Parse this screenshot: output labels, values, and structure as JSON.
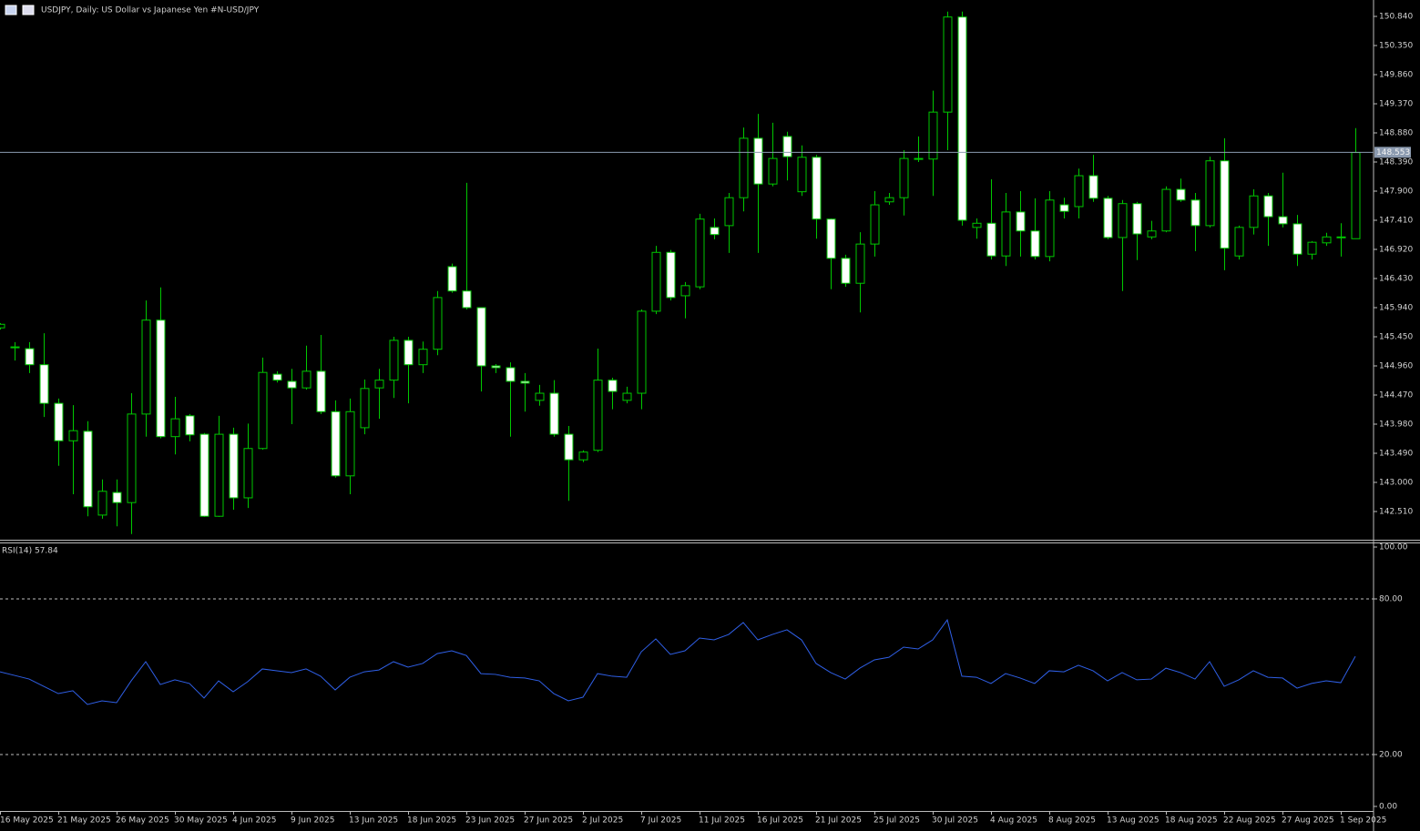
{
  "title": "USDJPY, Daily:  US Dollar vs  Japanese Yen #N-USD/JPY",
  "chart_data": [
    {
      "type": "candlestick",
      "color": "#00c800",
      "up_fill": "#000000",
      "down_fill": "#ffffff",
      "categories": [
        "16 May 2025",
        null,
        null,
        null,
        "21 May 2025",
        null,
        null,
        null,
        "26 May 2025",
        null,
        null,
        null,
        "30 May 2025",
        null,
        null,
        null,
        "4 Jun 2025",
        null,
        null,
        null,
        "9 Jun 2025",
        null,
        null,
        null,
        "13 Jun 2025",
        null,
        null,
        null,
        "18 Jun 2025",
        null,
        null,
        null,
        "23 Jun 2025",
        null,
        null,
        null,
        "27 Jun 2025",
        null,
        null,
        null,
        "2 Jul 2025",
        null,
        null,
        null,
        "7 Jul 2025",
        null,
        null,
        null,
        "11 Jul 2025",
        null,
        null,
        null,
        "16 Jul 2025",
        null,
        null,
        null,
        "21 Jul 2025",
        null,
        null,
        null,
        "25 Jul 2025",
        null,
        null,
        null,
        "30 Jul 2025",
        null,
        null,
        null,
        "4 Aug 2025",
        null,
        null,
        null,
        "8 Aug 2025",
        null,
        null,
        null,
        "13 Aug 2025",
        null,
        null,
        null,
        "18 Aug 2025",
        null,
        null,
        null,
        "22 Aug 2025",
        null,
        null,
        null,
        "27 Aug 2025",
        null,
        null,
        null,
        "1 Sep 2025",
        null
      ],
      "open": [
        145.6,
        145.28,
        145.25,
        144.98,
        144.33,
        143.7,
        143.86,
        142.45,
        142.83,
        142.66,
        144.15,
        145.73,
        143.77,
        144.12,
        143.81,
        142.43,
        143.81,
        142.74,
        143.57,
        144.82,
        144.7,
        144.59,
        144.87,
        144.19,
        143.11,
        143.92,
        144.59,
        144.72,
        145.39,
        144.98,
        145.24,
        146.63,
        146.22,
        145.94,
        144.96,
        144.93,
        144.7,
        144.38,
        144.5,
        143.81,
        143.38,
        143.54,
        144.72,
        144.38,
        144.5,
        145.88,
        146.87,
        146.14,
        146.29,
        147.29,
        147.32,
        147.79,
        148.79,
        148.02,
        148.82,
        147.89,
        148.47,
        147.43,
        146.77,
        146.35,
        147.01,
        147.72,
        147.79,
        148.45,
        148.44,
        149.23,
        150.83,
        147.29,
        147.36,
        146.81,
        147.55,
        147.23,
        146.8,
        147.67,
        147.64,
        148.16,
        147.78,
        147.12,
        147.69,
        147.13,
        147.23,
        147.93,
        147.75,
        147.32,
        148.41,
        146.81,
        147.29,
        147.82,
        147.47,
        147.35,
        146.84,
        147.03,
        147.13,
        147.1
      ],
      "high": [
        145.68,
        145.36,
        145.36,
        145.51,
        144.41,
        144.3,
        144.03,
        143.05,
        143.05,
        144.5,
        146.06,
        146.28,
        144.44,
        144.15,
        143.83,
        144.12,
        143.92,
        143.99,
        145.1,
        144.87,
        144.91,
        145.3,
        145.48,
        144.38,
        144.41,
        144.73,
        144.91,
        145.45,
        145.45,
        145.37,
        146.22,
        146.68,
        148.04,
        145.94,
        144.99,
        145.02,
        144.84,
        144.64,
        144.72,
        143.95,
        143.54,
        145.25,
        144.76,
        144.61,
        145.91,
        146.98,
        146.91,
        146.37,
        147.52,
        147.44,
        147.87,
        148.97,
        149.2,
        149.05,
        148.9,
        148.67,
        148.51,
        147.44,
        146.83,
        147.21,
        147.9,
        147.87,
        148.59,
        148.82,
        149.59,
        150.92,
        150.92,
        147.44,
        148.1,
        147.87,
        147.9,
        147.78,
        147.9,
        147.79,
        148.28,
        148.51,
        147.82,
        147.75,
        147.72,
        147.4,
        147.98,
        148.11,
        147.87,
        148.48,
        148.79,
        147.32,
        147.93,
        147.87,
        148.21,
        147.5,
        147.06,
        147.2,
        147.36,
        148.96
      ],
      "low": [
        145.57,
        145.05,
        144.84,
        144.1,
        143.28,
        142.8,
        142.43,
        142.39,
        142.26,
        142.13,
        143.77,
        143.74,
        143.47,
        143.69,
        142.42,
        142.42,
        142.54,
        142.57,
        143.55,
        144.68,
        143.98,
        144.56,
        144.15,
        143.08,
        142.8,
        143.81,
        144.07,
        144.42,
        144.33,
        144.84,
        145.14,
        146.19,
        145.91,
        144.53,
        144.84,
        143.77,
        144.19,
        144.29,
        143.77,
        142.69,
        143.34,
        143.51,
        144.23,
        144.33,
        144.23,
        145.83,
        146.06,
        145.76,
        146.25,
        147.09,
        146.86,
        147.56,
        146.86,
        147.98,
        148.08,
        147.82,
        147.1,
        146.25,
        146.29,
        145.86,
        146.8,
        147.67,
        147.49,
        148.39,
        147.82,
        148.59,
        147.32,
        147.1,
        146.75,
        146.64,
        146.8,
        146.75,
        146.72,
        147.44,
        147.44,
        147.72,
        147.09,
        146.22,
        146.74,
        147.09,
        147.21,
        147.72,
        146.89,
        147.29,
        146.57,
        146.75,
        147.17,
        146.98,
        147.29,
        146.64,
        146.75,
        146.98,
        146.8,
        147.1
      ],
      "close": [
        145.66,
        145.27,
        144.98,
        144.33,
        143.7,
        143.87,
        142.59,
        142.85,
        142.66,
        144.15,
        145.73,
        143.77,
        144.07,
        143.8,
        142.43,
        143.81,
        142.74,
        143.57,
        144.85,
        144.72,
        144.59,
        144.87,
        144.19,
        143.11,
        144.19,
        144.58,
        144.72,
        145.39,
        144.98,
        145.24,
        146.11,
        146.22,
        145.94,
        144.96,
        144.93,
        144.7,
        144.67,
        144.5,
        143.81,
        143.38,
        143.51,
        144.72,
        144.53,
        144.5,
        145.88,
        146.87,
        146.11,
        146.31,
        147.43,
        147.17,
        147.79,
        148.79,
        148.02,
        148.45,
        148.48,
        148.47,
        147.43,
        146.77,
        146.35,
        147.01,
        147.67,
        147.79,
        148.45,
        148.44,
        149.23,
        150.83,
        147.41,
        147.36,
        146.81,
        147.55,
        147.23,
        146.8,
        147.75,
        147.56,
        148.16,
        147.78,
        147.12,
        147.69,
        147.18,
        147.23,
        147.93,
        147.75,
        147.32,
        148.41,
        146.94,
        147.29,
        147.82,
        147.47,
        147.35,
        146.84,
        147.04,
        147.13,
        147.12,
        148.55
      ],
      "ylim": [
        142.035,
        151.116
      ],
      "yticks": [
        {
          "value": 150.84,
          "label": "150.840"
        },
        {
          "value": 150.35,
          "label": "150.350"
        },
        {
          "value": 149.86,
          "label": "149.860"
        },
        {
          "value": 149.37,
          "label": "149.370"
        },
        {
          "value": 148.88,
          "label": "148.880"
        },
        {
          "value": 148.39,
          "label": "148.390"
        },
        {
          "value": 147.9,
          "label": "147.900"
        },
        {
          "value": 147.41,
          "label": "147.410"
        },
        {
          "value": 146.92,
          "label": "146.920"
        },
        {
          "value": 146.43,
          "label": "146.430"
        },
        {
          "value": 145.94,
          "label": "145.940"
        },
        {
          "value": 145.45,
          "label": "145.450"
        },
        {
          "value": 144.96,
          "label": "144.960"
        },
        {
          "value": 144.47,
          "label": "144.470"
        },
        {
          "value": 143.98,
          "label": "143.980"
        },
        {
          "value": 143.49,
          "label": "143.490"
        },
        {
          "value": 143.0,
          "label": "143.000"
        },
        {
          "value": 142.51,
          "label": "142.510"
        }
      ],
      "current_price": {
        "value": 148.553,
        "label": "148.553"
      },
      "current_price_color": "#8c9bb0"
    },
    {
      "type": "line",
      "label": "RSI(14) 57.84",
      "series": [
        {
          "name": "RSI(14)",
          "color": "#2f5fe6",
          "values": [
            51.9,
            50.5,
            49.1,
            46.3,
            43.5,
            44.6,
            39.3,
            40.7,
            40.0,
            48.4,
            55.8,
            47.0,
            48.8,
            47.4,
            41.8,
            48.4,
            44.2,
            48.1,
            53.0,
            52.3,
            51.6,
            53.0,
            50.2,
            44.9,
            49.8,
            51.9,
            52.6,
            55.8,
            53.7,
            55.1,
            58.9,
            60.0,
            58.2,
            51.2,
            50.9,
            49.8,
            49.5,
            48.4,
            43.5,
            40.7,
            42.1,
            51.2,
            50.2,
            49.8,
            59.6,
            64.6,
            58.6,
            60.0,
            64.9,
            64.2,
            66.3,
            70.9,
            64.2,
            66.3,
            68.1,
            64.2,
            55.1,
            51.6,
            49.1,
            53.3,
            56.5,
            57.5,
            61.4,
            60.7,
            64.2,
            71.9,
            50.2,
            49.8,
            47.4,
            51.2,
            49.5,
            47.4,
            52.3,
            51.9,
            54.4,
            52.3,
            48.4,
            51.6,
            48.8,
            49.1,
            53.3,
            51.6,
            49.1,
            55.8,
            46.3,
            48.8,
            52.3,
            49.8,
            49.5,
            45.6,
            47.4,
            48.4,
            47.7,
            57.84
          ]
        }
      ],
      "ylim": [
        0,
        100
      ],
      "yticks": [
        {
          "value": 100,
          "label": "100.00"
        },
        {
          "value": 80,
          "label": "80.00"
        },
        {
          "value": 20,
          "label": "20.00"
        },
        {
          "value": 0,
          "label": "0.00"
        }
      ],
      "levels": [
        80,
        20
      ]
    }
  ]
}
